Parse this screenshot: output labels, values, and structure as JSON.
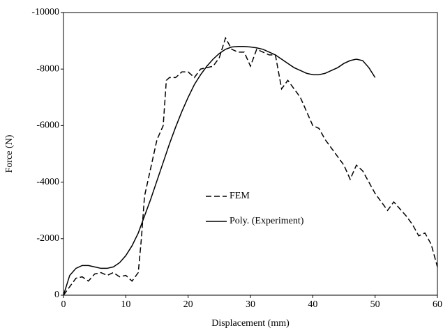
{
  "chart_data": {
    "type": "line",
    "x_label": "Displacement (mm)",
    "y_label": "Force (N)",
    "xlim": [
      0,
      60
    ],
    "xticks": [
      0,
      10,
      20,
      30,
      40,
      50,
      60
    ],
    "ylim": [
      0,
      -10000
    ],
    "yticks": [
      0,
      -2000,
      -4000,
      -6000,
      -8000,
      -10000
    ],
    "grid": false,
    "legend": "center",
    "series": [
      {
        "name": "FEM",
        "color": "#000000",
        "dashed": true,
        "x": [
          0,
          1,
          2,
          3,
          4,
          5,
          6,
          7,
          8,
          9,
          10,
          11,
          12,
          12.5,
          13,
          14,
          15,
          16,
          16.5,
          17,
          18,
          19,
          20,
          21,
          22,
          24,
          25,
          26,
          27,
          28,
          29,
          30,
          31,
          32,
          33,
          34,
          35,
          36,
          38,
          40,
          41,
          42,
          44,
          45,
          46,
          47,
          48,
          50,
          51,
          52,
          53,
          55,
          56,
          57,
          58,
          59,
          60
        ],
        "values": [
          0,
          -300,
          -600,
          -650,
          -500,
          -750,
          -800,
          -700,
          -800,
          -650,
          -700,
          -500,
          -800,
          -2000,
          -3500,
          -4500,
          -5500,
          -6000,
          -7600,
          -7700,
          -7700,
          -7900,
          -7900,
          -7700,
          -8000,
          -8100,
          -8400,
          -9100,
          -8700,
          -8600,
          -8600,
          -8100,
          -8700,
          -8600,
          -8500,
          -8500,
          -7300,
          -7600,
          -7000,
          -6000,
          -5900,
          -5500,
          -4900,
          -4600,
          -4100,
          -4600,
          -4400,
          -3600,
          -3300,
          -3000,
          -3300,
          -2800,
          -2500,
          -2100,
          -2200,
          -1800,
          -1000
        ]
      },
      {
        "name": "Poly. (Experiment)",
        "color": "#000000",
        "dashed": false,
        "x": [
          0,
          1,
          2,
          3,
          4,
          5,
          6,
          7,
          8,
          9,
          10,
          11,
          12,
          13,
          14,
          15,
          16,
          17,
          18,
          19,
          20,
          21,
          22,
          23,
          24,
          25,
          26,
          27,
          28,
          29,
          30,
          31,
          32,
          33,
          34,
          35,
          36,
          37,
          38,
          39,
          40,
          41,
          42,
          43,
          44,
          45,
          46,
          47,
          48,
          49,
          50
        ],
        "values": [
          0,
          -700,
          -950,
          -1050,
          -1050,
          -1000,
          -950,
          -950,
          -1000,
          -1150,
          -1400,
          -1750,
          -2200,
          -2800,
          -3400,
          -4050,
          -4700,
          -5350,
          -5950,
          -6500,
          -7000,
          -7450,
          -7800,
          -8100,
          -8350,
          -8550,
          -8700,
          -8780,
          -8800,
          -8800,
          -8780,
          -8750,
          -8700,
          -8600,
          -8500,
          -8350,
          -8200,
          -8050,
          -7950,
          -7850,
          -7800,
          -7800,
          -7850,
          -7950,
          -8050,
          -8200,
          -8300,
          -8350,
          -8300,
          -8050,
          -7700
        ]
      }
    ]
  }
}
